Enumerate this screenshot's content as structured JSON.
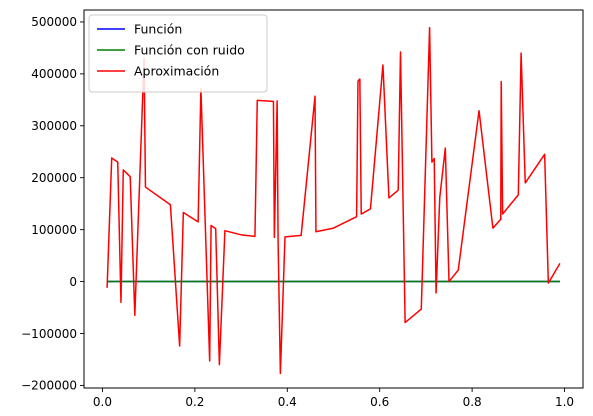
{
  "chart_data": {
    "type": "line",
    "title": "",
    "xlabel": "",
    "ylabel": "",
    "xlim": [
      -0.04,
      1.04
    ],
    "ylim": [
      -205000,
      523000
    ],
    "xticks": [
      0.0,
      0.2,
      0.4,
      0.6,
      0.8,
      1.0
    ],
    "xtick_labels": [
      "0.0",
      "0.2",
      "0.4",
      "0.6",
      "0.8",
      "1.0"
    ],
    "yticks": [
      -200000,
      -100000,
      0,
      100000,
      200000,
      300000,
      400000,
      500000
    ],
    "ytick_labels": [
      "−200000",
      "−100000",
      "0",
      "100000",
      "200000",
      "300000",
      "400000",
      "500000"
    ],
    "grid": false,
    "legend_position": "top-left",
    "series": [
      {
        "name": "Función",
        "color": "#0000ff",
        "x": [
          0.01,
          0.99
        ],
        "y": [
          0,
          0
        ]
      },
      {
        "name": "Función con ruido",
        "color": "#008000",
        "x": [
          0.01,
          0.99
        ],
        "y": [
          0,
          0
        ]
      },
      {
        "name": "Aproximación",
        "color": "#ff0000",
        "x": [
          0.01,
          0.02,
          0.033,
          0.04,
          0.045,
          0.06,
          0.07,
          0.09,
          0.093,
          0.147,
          0.167,
          0.175,
          0.207,
          0.213,
          0.232,
          0.235,
          0.245,
          0.253,
          0.265,
          0.3,
          0.33,
          0.335,
          0.37,
          0.372,
          0.378,
          0.38,
          0.385,
          0.395,
          0.43,
          0.46,
          0.462,
          0.5,
          0.55,
          0.553,
          0.557,
          0.56,
          0.58,
          0.607,
          0.62,
          0.64,
          0.645,
          0.655,
          0.69,
          0.708,
          0.713,
          0.718,
          0.722,
          0.73,
          0.742,
          0.75,
          0.77,
          0.815,
          0.845,
          0.862,
          0.863,
          0.866,
          0.9,
          0.906,
          0.915,
          0.957,
          0.965,
          0.99
        ],
        "y": [
          -12000,
          238000,
          230000,
          -40000,
          215000,
          202000,
          -65000,
          430000,
          182000,
          148000,
          -124000,
          133000,
          115000,
          372000,
          -153000,
          108000,
          102000,
          -160000,
          98000,
          90000,
          87000,
          349000,
          347000,
          85000,
          348000,
          82000,
          -177000,
          86000,
          89000,
          357000,
          96000,
          103000,
          125000,
          386000,
          390000,
          130000,
          140000,
          417000,
          161000,
          176000,
          442000,
          -79000,
          -53000,
          489000,
          230000,
          237000,
          -22000,
          162000,
          257000,
          0,
          22000,
          329000,
          103000,
          120000,
          385000,
          130000,
          167000,
          440000,
          190000,
          245000,
          -3000,
          35000
        ]
      }
    ]
  }
}
